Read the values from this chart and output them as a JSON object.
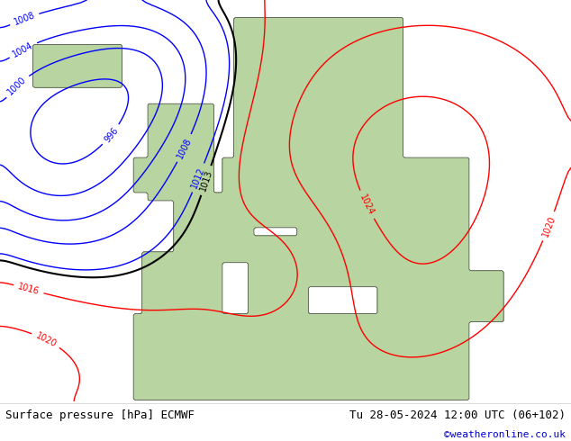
{
  "title_left": "Surface pressure [hPa] ECMWF",
  "title_right": "Tu 28-05-2024 12:00 UTC (06+102)",
  "watermark": "©weatheronline.co.uk",
  "bg_color_ocean": "#d0d8e8",
  "bg_color_land": "#b8d4a0",
  "bg_color_bottom": "#f0f0f0",
  "fig_width": 6.34,
  "fig_height": 4.9,
  "dpi": 100,
  "isobars": [
    {
      "level": 996,
      "color": "blue",
      "linewidth": 1.0
    },
    {
      "level": 1000,
      "color": "blue",
      "linewidth": 1.0
    },
    {
      "level": 1004,
      "color": "blue",
      "linewidth": 1.0
    },
    {
      "level": 1008,
      "color": "blue",
      "linewidth": 1.0
    },
    {
      "level": 1012,
      "color": "blue",
      "linewidth": 1.0
    },
    {
      "level": 1013,
      "color": "black",
      "linewidth": 1.5
    },
    {
      "level": 1016,
      "color": "red",
      "linewidth": 1.0
    },
    {
      "level": 1020,
      "color": "red",
      "linewidth": 1.0
    },
    {
      "level": 1024,
      "color": "red",
      "linewidth": 1.0
    }
  ]
}
